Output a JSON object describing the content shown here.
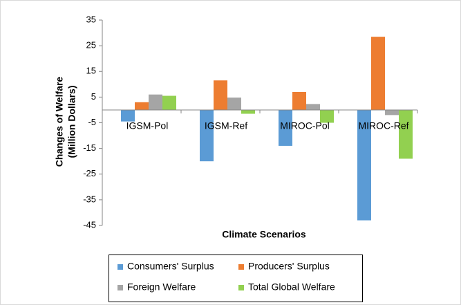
{
  "chart_data": {
    "type": "bar",
    "x_label": "Climate Scenarios",
    "y_label": [
      "Changes of Welfare",
      "(Million Dollars)"
    ],
    "categories": [
      "IGSM-Pol",
      "IGSM-Ref",
      "MIROC-Pol",
      "MIROC-Ref"
    ],
    "series": [
      {
        "name": "Consumers' Surplus",
        "color": "#5b9bd5",
        "values": [
          -4.5,
          -20,
          -14,
          -43
        ]
      },
      {
        "name": "Producers' Surplus",
        "color": "#ed7d31",
        "values": [
          3,
          11.5,
          7,
          28.5
        ]
      },
      {
        "name": "Foreign Welfare",
        "color": "#a5a5a5",
        "values": [
          6,
          4.8,
          2.3,
          -2
        ]
      },
      {
        "name": "Total Global Welfare",
        "color": "#92d050",
        "values": [
          5.5,
          -1.5,
          -5,
          -19
        ]
      }
    ],
    "ylim": [
      -45,
      35
    ],
    "yticks": [
      -45,
      -35,
      -25,
      -15,
      -5,
      5,
      15,
      25,
      35
    ],
    "grid": false,
    "legend": "bottom"
  }
}
